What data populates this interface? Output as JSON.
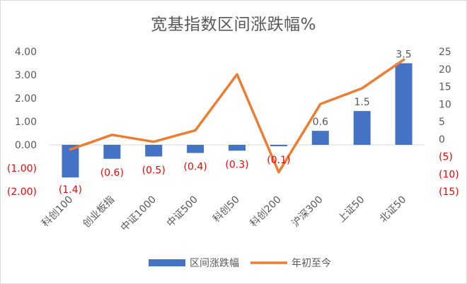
{
  "chart_data": {
    "type": "bar",
    "title": "宽基指数区间涨跌幅%",
    "categories": [
      "科创100",
      "创业板指",
      "中证1000",
      "中证500",
      "科创50",
      "科创200",
      "沪深300",
      "上证50",
      "北证50"
    ],
    "series": [
      {
        "name": "区间涨跌幅",
        "type": "bar",
        "axis": "left",
        "values": [
          -1.4,
          -0.6,
          -0.5,
          -0.35,
          -0.25,
          -0.06,
          0.6,
          1.45,
          3.5
        ],
        "labels": [
          "(1.4)",
          "(0.6)",
          "(0.5)",
          "(0.4)",
          "(0.3)",
          "(0.1)",
          "0.6",
          "1.5",
          "3.5"
        ],
        "color": "#4472c4"
      },
      {
        "name": "年初至今",
        "type": "line",
        "axis": "right",
        "values": [
          -3.0,
          1.2,
          -0.8,
          2.5,
          18.5,
          -9.5,
          10.0,
          14.5,
          22.7
        ],
        "color": "#ed7d31"
      }
    ],
    "y_left": {
      "ylim": [
        -2,
        4
      ],
      "ticks": [
        4,
        3,
        2,
        1,
        0,
        -1,
        -2
      ],
      "tick_labels": [
        "4.00",
        "3.00",
        "2.00",
        "1.00",
        "0.00",
        "(1.00)",
        "(2.00)"
      ]
    },
    "y_right": {
      "ylim": [
        -15,
        25
      ],
      "ticks": [
        25,
        20,
        15,
        10,
        5,
        0,
        -5,
        -10,
        -15
      ],
      "tick_labels": [
        "25",
        "20",
        "15",
        "10",
        "5",
        "0",
        "(5)",
        "(10)",
        "(15)"
      ]
    },
    "negative_color": "#ff0000",
    "axis_text_color": "#595959",
    "legend_position": "bottom"
  }
}
